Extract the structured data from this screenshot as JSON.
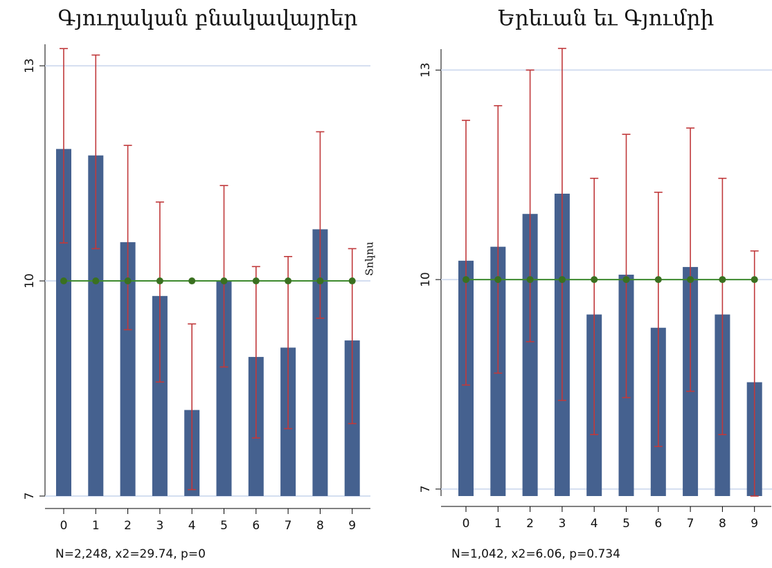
{
  "chart_data": [
    {
      "type": "bar",
      "title": "Գյուղական բնակավայրեր",
      "categories": [
        "0",
        "1",
        "2",
        "3",
        "4",
        "5",
        "6",
        "7",
        "8",
        "9"
      ],
      "values": [
        11.84,
        11.75,
        10.54,
        9.79,
        8.2,
        10.0,
        8.94,
        9.07,
        10.72,
        9.17
      ],
      "ci_low": [
        10.53,
        10.45,
        9.32,
        8.59,
        7.09,
        8.8,
        7.81,
        7.94,
        9.48,
        8.01
      ],
      "ci_high": [
        13.24,
        13.15,
        11.89,
        11.1,
        9.4,
        11.33,
        10.2,
        10.34,
        12.08,
        10.45
      ],
      "color": "#45618f",
      "error_color": "#c0393b",
      "hline": 10,
      "hline_label": "Տոկոս",
      "hline_color": "#3d8a2d",
      "ylim": [
        7,
        13.3
      ],
      "yticks": [
        7,
        10,
        13
      ],
      "grid": true,
      "note": "N=2,248,  x2=29.74,  p=0"
    },
    {
      "type": "bar",
      "title": "Երեւան եւ Գյումրի",
      "categories": [
        "0",
        "1",
        "2",
        "3",
        "4",
        "5",
        "6",
        "7",
        "8",
        "9"
      ],
      "values": [
        10.27,
        10.47,
        10.94,
        11.23,
        9.5,
        10.07,
        9.31,
        10.18,
        9.5,
        8.53
      ],
      "ci_low": [
        8.49,
        8.66,
        9.11,
        8.27,
        7.78,
        8.31,
        7.61,
        8.4,
        7.78,
        6.9
      ],
      "ci_high": [
        12.28,
        12.49,
        13.0,
        13.31,
        11.45,
        12.08,
        11.25,
        12.17,
        11.45,
        10.41
      ],
      "color": "#45618f",
      "error_color": "#c0393b",
      "hline": 10,
      "hline_color": "#3d8a2d",
      "ylim": [
        6.9,
        13.3
      ],
      "yticks": [
        7,
        10,
        13
      ],
      "grid": true,
      "note": "N=1,042,  x2=6.06,  p=0.734"
    }
  ]
}
